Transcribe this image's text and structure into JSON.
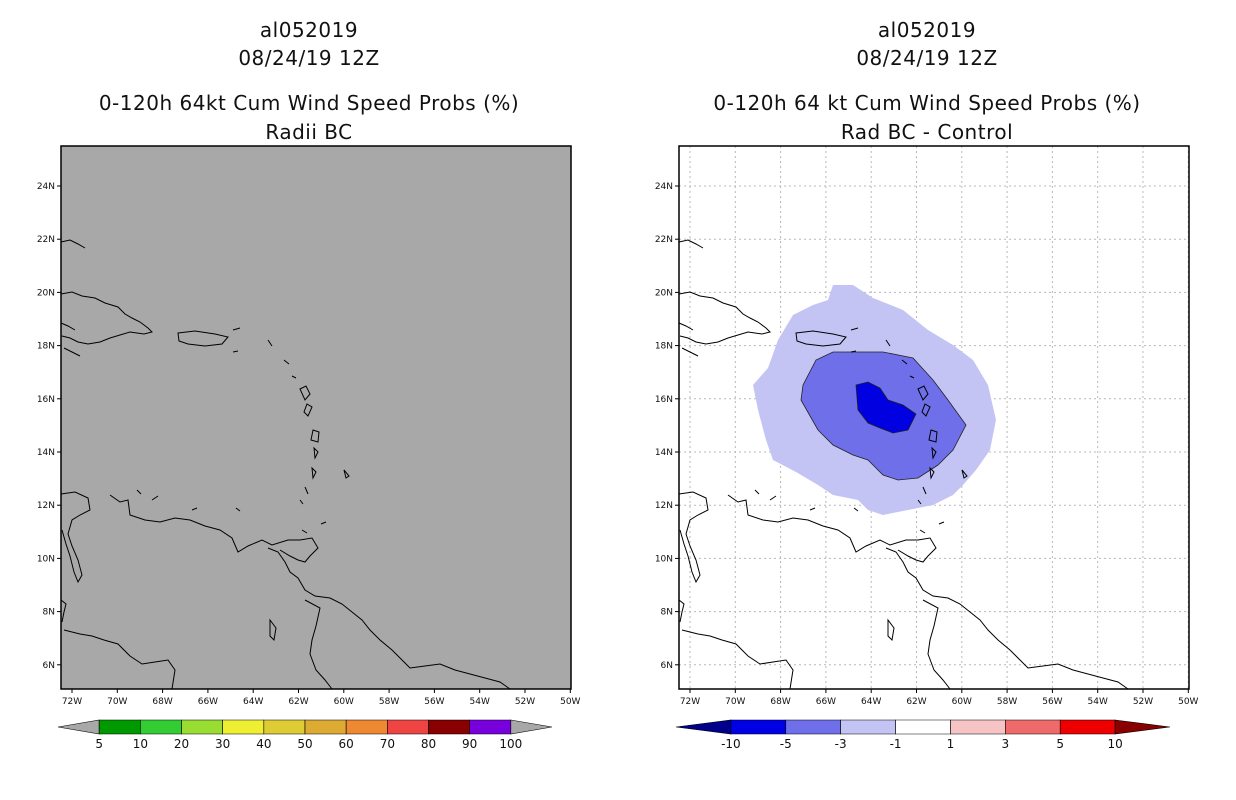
{
  "left_panel": {
    "title1": "al052019",
    "title2": "08/24/19 12Z",
    "title3": "0-120h 64kt Cum Wind Speed Probs (%)",
    "title4": "Radii BC",
    "field_color": "#a8a8a8",
    "lat_labels": [
      "24N",
      "22N",
      "20N",
      "18N",
      "16N",
      "14N",
      "12N",
      "10N",
      "8N",
      "6N"
    ],
    "lon_labels": [
      "72W",
      "70W",
      "68W",
      "66W",
      "64W",
      "62W",
      "60W",
      "58W",
      "56W",
      "54W",
      "52W",
      "50W"
    ],
    "colorbar": {
      "colors": [
        "#a8a8a8",
        "#009900",
        "#33cc33",
        "#99dd33",
        "#eeee33",
        "#ddcc33",
        "#ddaa33",
        "#ee8833",
        "#ee4444",
        "#880000",
        "#7700dd",
        "#a8a8a8"
      ],
      "labels": [
        "5",
        "10",
        "20",
        "30",
        "40",
        "50",
        "60",
        "70",
        "80",
        "90",
        "100"
      ]
    }
  },
  "right_panel": {
    "title1": "al052019",
    "title2": "08/24/19 12Z",
    "title3": "0-120h 64 kt Cum Wind Speed Probs (%)",
    "title4": "Rad BC - Control",
    "lat_labels": [
      "24N",
      "22N",
      "20N",
      "18N",
      "16N",
      "14N",
      "12N",
      "10N",
      "8N",
      "6N"
    ],
    "lon_labels": [
      "72W",
      "70W",
      "68W",
      "66W",
      "64W",
      "62W",
      "60W",
      "58W",
      "56W",
      "54W",
      "52W",
      "50W"
    ],
    "contour_colors": {
      "outer": "#c4c4f4",
      "middle": "#6f6fea",
      "inner": "#0000e0"
    },
    "colorbar": {
      "colors": [
        "#00008a",
        "#0000e6",
        "#6f6fea",
        "#c4c4f4",
        "#ffffff",
        "#f6c4c4",
        "#ef6b6b",
        "#ee0000",
        "#880000"
      ],
      "labels": [
        "-10",
        "-5",
        "-3",
        "-1",
        "1",
        "3",
        "5",
        "10"
      ]
    }
  }
}
